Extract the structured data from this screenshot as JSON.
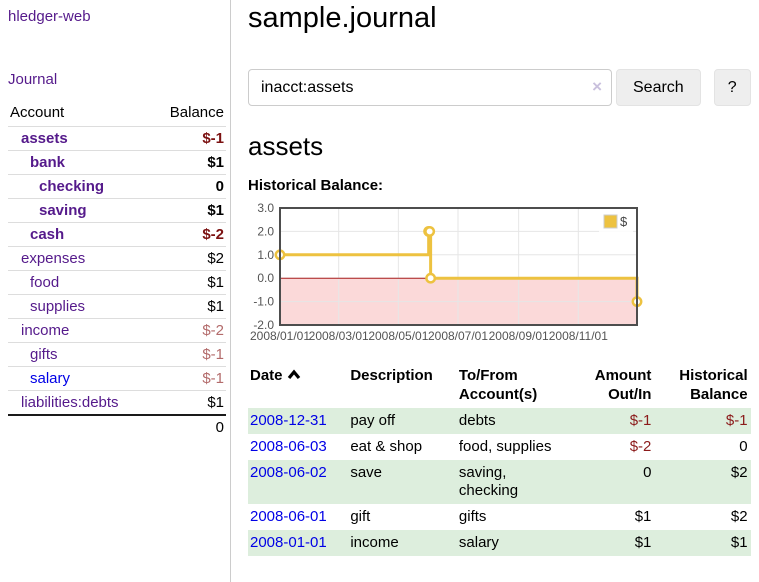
{
  "app": {
    "brand": "hledger-web",
    "nav_journal": "Journal"
  },
  "sidebar": {
    "col_account": "Account",
    "col_balance": "Balance",
    "accounts": [
      {
        "name": "assets",
        "indent": 1,
        "bold": true,
        "balance": "$-1"
      },
      {
        "name": "bank",
        "indent": 2,
        "bold": true,
        "balance": "$1"
      },
      {
        "name": "checking",
        "indent": 3,
        "bold": true,
        "balance": "0"
      },
      {
        "name": "saving",
        "indent": 3,
        "bold": true,
        "balance": "$1"
      },
      {
        "name": "cash",
        "indent": 2,
        "bold": true,
        "balance": "$-2"
      },
      {
        "name": "expenses",
        "indent": 1,
        "bold": false,
        "balance": "$2"
      },
      {
        "name": "food",
        "indent": 2,
        "bold": false,
        "balance": "$1"
      },
      {
        "name": "supplies",
        "indent": 2,
        "bold": false,
        "balance": "$1"
      },
      {
        "name": "income",
        "indent": 1,
        "bold": false,
        "balance": "$-2"
      },
      {
        "name": "gifts",
        "indent": 2,
        "bold": false,
        "balance": "$-1"
      },
      {
        "name": "salary",
        "indent": 2,
        "bold": false,
        "balance": "$-1",
        "blue": true
      },
      {
        "name": "liabilities:debts",
        "indent": 1,
        "bold": false,
        "balance": "$1"
      }
    ],
    "total": "0"
  },
  "header": {
    "title": "sample.journal"
  },
  "search": {
    "value": "inacct:assets",
    "clear_icon": "×",
    "button": "Search",
    "help_button": "?"
  },
  "account_page": {
    "heading": "assets",
    "chart_label": "Historical Balance:"
  },
  "chart_data": {
    "type": "line",
    "interpolation": "step",
    "series": [
      {
        "name": "$",
        "color": "#edc240",
        "x_dates": [
          "2008-01-01",
          "2008-06-01",
          "2008-06-02",
          "2008-06-03",
          "2008-12-31"
        ],
        "x_days": [
          0,
          152,
          153,
          154,
          365
        ],
        "values": [
          1,
          2,
          2,
          0,
          -1
        ]
      }
    ],
    "x_ticks": [
      {
        "label": "2008/01/01",
        "day": 0
      },
      {
        "label": "2008/03/01",
        "day": 60
      },
      {
        "label": "2008/05/01",
        "day": 121
      },
      {
        "label": "2008/07/01",
        "day": 182
      },
      {
        "label": "2008/09/01",
        "day": 244
      },
      {
        "label": "2008/11/01",
        "day": 305
      }
    ],
    "y_ticks": [
      "3.0",
      "2.0",
      "1.0",
      "0.0",
      "-1.0",
      "-2.0"
    ],
    "ylim": [
      -2,
      3
    ],
    "xlim_days": [
      0,
      365
    ],
    "grid": true,
    "legend_position": "top-right",
    "negative_region_color": "#fbd9d9",
    "zero_line_color": "#aa1c1c",
    "border_color": "#4d4d4d",
    "grid_color": "#e6e6e6",
    "tick_label_color": "#545454"
  },
  "register": {
    "headers": {
      "date": "Date",
      "description": "Description",
      "tofrom_1": "To/From",
      "tofrom_2": "Account(s)",
      "amount_1": "Amount",
      "amount_2": "Out/In",
      "balance_1": "Historical",
      "balance_2": "Balance"
    },
    "rows": [
      {
        "date": "2008-12-31",
        "description": "pay off",
        "accounts": [
          "debts"
        ],
        "amount": "$-1",
        "balance": "$-1"
      },
      {
        "date": "2008-06-03",
        "description": "eat & shop",
        "accounts": [
          "food, supplies"
        ],
        "amount": "$-2",
        "balance": "0"
      },
      {
        "date": "2008-06-02",
        "description": "save",
        "accounts": [
          "saving,",
          "checking"
        ],
        "amount": "0",
        "balance": "$2"
      },
      {
        "date": "2008-06-01",
        "description": "gift",
        "accounts": [
          "gifts"
        ],
        "amount": "$1",
        "balance": "$2"
      },
      {
        "date": "2008-01-01",
        "description": "income",
        "accounts": [
          "salary"
        ],
        "amount": "$1",
        "balance": "$1"
      }
    ]
  },
  "colors": {
    "link_purple": "#551a8b",
    "link_blue": "#0000e6",
    "negative_red": "#8b1a1a",
    "negative_bold_red": "#7b1111",
    "negative_muted_red": "#b36b6b",
    "row_stripe_green": "#ddeedd",
    "chart_line_gold": "#edc240"
  }
}
